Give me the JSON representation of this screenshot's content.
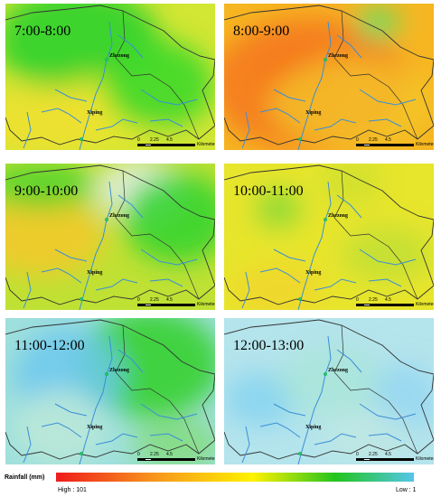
{
  "panels": [
    {
      "time": "7:00-8:00",
      "town_north": "Zhezong",
      "town_south": "Xiping",
      "base": "#d2e634",
      "blobs": [
        [
          "#32d22e",
          0.92
        ],
        [
          "#e7e62e",
          0.85
        ],
        [
          "#3ed92a",
          0.9
        ],
        [
          "#f0e02e",
          0.8
        ]
      ]
    },
    {
      "time": "8:00-9:00",
      "town_north": "Zhezong",
      "town_south": "Xiping",
      "base": "#f6b622",
      "blobs": [
        [
          "#f02a1a",
          1
        ],
        [
          "#f57a20",
          0.9
        ],
        [
          "#f3cf2a",
          0.7
        ],
        [
          "#5fe064",
          0.9
        ]
      ]
    },
    {
      "time": "9:00-10:00",
      "town_north": "Zhezong",
      "town_south": "Xiping",
      "base": "#bfe134",
      "blobs": [
        [
          "#e8f0f0",
          0.85
        ],
        [
          "#2ed42e",
          0.85
        ],
        [
          "#f5c828",
          0.85
        ],
        [
          "#42d22a",
          0.8
        ]
      ]
    },
    {
      "time": "10:00-11:00",
      "town_north": "Zhezong",
      "town_south": "Xiping",
      "base": "#e7e52c",
      "blobs": [
        [
          "#7ed83a",
          0.8
        ],
        [
          "#c9e02e",
          0.7
        ],
        [
          "#f1d42a",
          0.8
        ],
        [
          "#b0dd36",
          0.6
        ]
      ]
    },
    {
      "time": "11:00-12:00",
      "town_north": "Zhezong",
      "town_south": "Xiping",
      "base": "#9fe0dc",
      "blobs": [
        [
          "#3cd23a",
          0.95
        ],
        [
          "#6cc8ee",
          0.85
        ],
        [
          "#bde9d8",
          0.9
        ],
        [
          "#7edc6a",
          0.7
        ]
      ]
    },
    {
      "time": "12:00-13:00",
      "town_north": "Zhezong",
      "town_south": "Xiping",
      "base": "#b4e4ec",
      "blobs": [
        [
          "#86d4f0",
          0.85
        ],
        [
          "#a8e6d6",
          0.7
        ],
        [
          "#92d6f2",
          0.8
        ],
        [
          "#c4eae0",
          0.6
        ]
      ]
    }
  ],
  "scale": {
    "ticks": [
      "0",
      "2.25",
      "4.5"
    ],
    "unit": "Kilometers"
  },
  "legend": {
    "title": "Rainfall (mm)",
    "high": "High : 101",
    "low": "Low : 1",
    "colors": [
      "#ee1c1c",
      "#f7941d",
      "#fff200",
      "#22c41e",
      "#54c6ea"
    ]
  }
}
